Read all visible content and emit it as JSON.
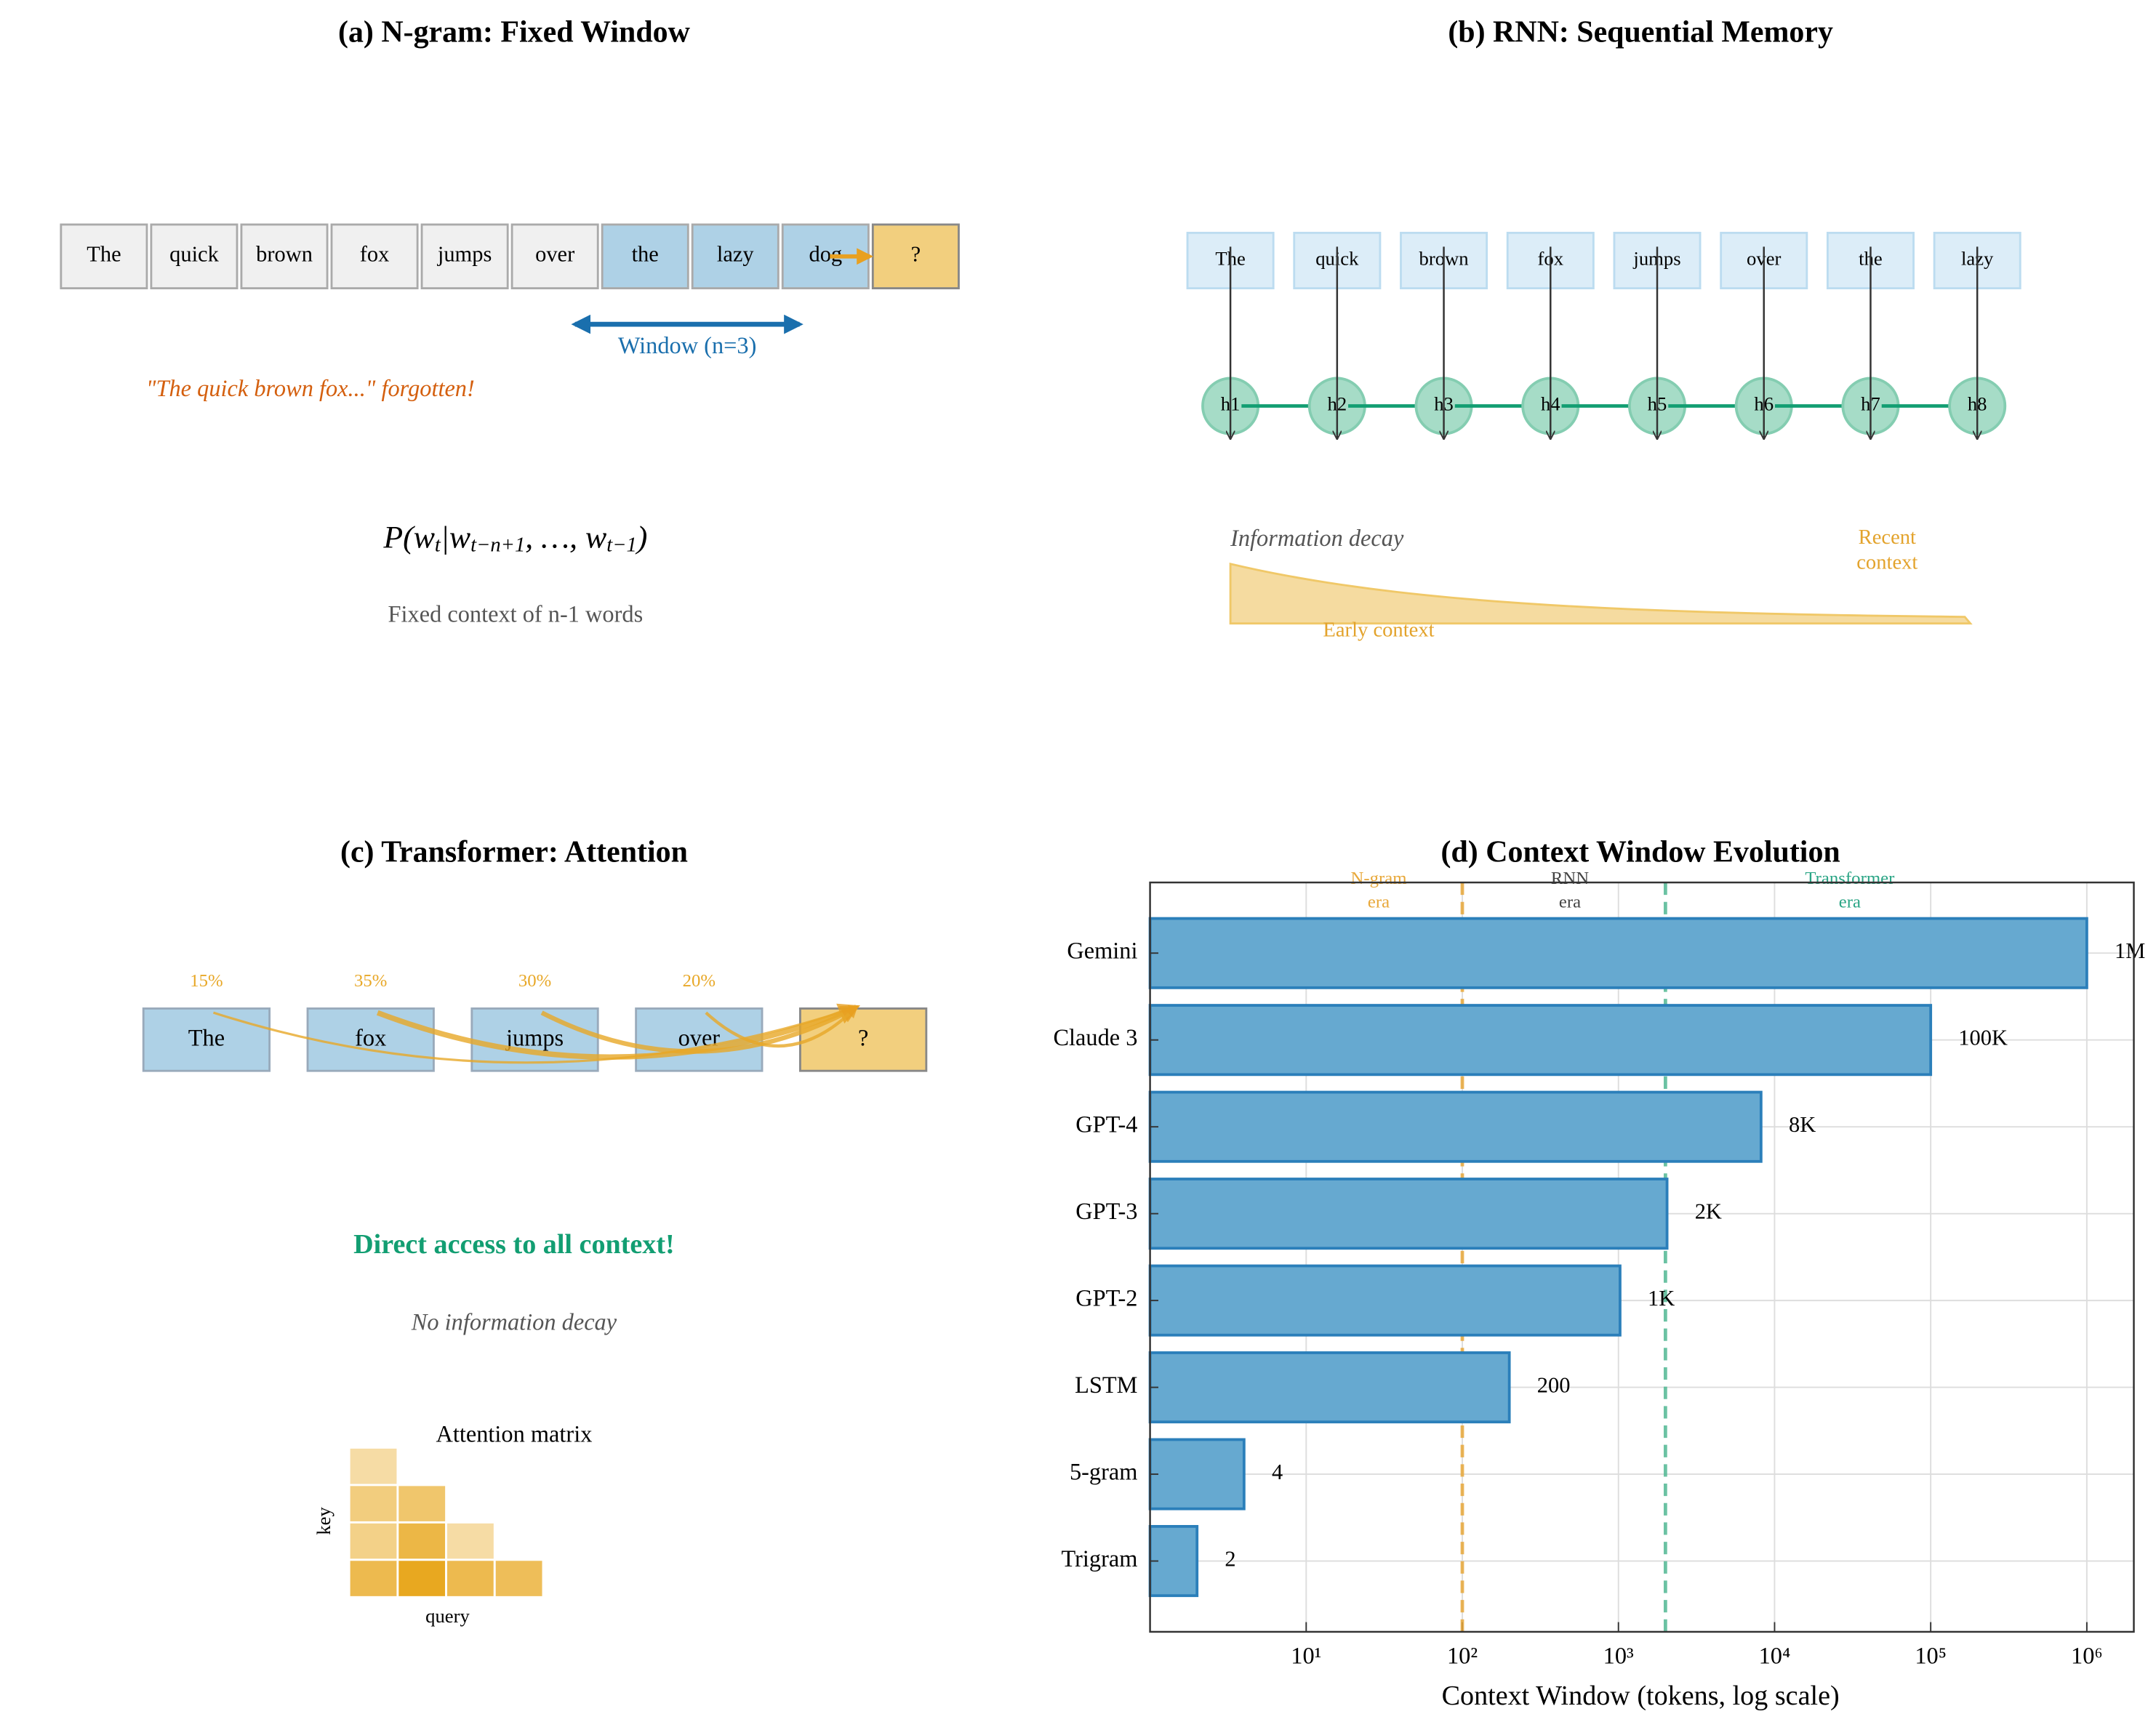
{
  "chart_data": [
    {
      "type": "ngram",
      "title": "(a) N-gram: Fixed Window",
      "tokens": [
        "The",
        "quick",
        "brown",
        "fox",
        "jumps",
        "over",
        "the",
        "lazy",
        "dog",
        "?"
      ],
      "window_label": "Window (n=3)",
      "note": "\"The quick brown fox...\" forgotten!",
      "formula": [
        "P(w",
        "t",
        "|w",
        "t−n+1",
        ", …, w",
        "t−1",
        ")"
      ],
      "caption": "Fixed context of n-1 words",
      "colors": {
        "context": "#f0f0f0",
        "window": "#aed1e6",
        "target": "#f2cf7e",
        "arrow": "#1a6fad",
        "note": "#d45f0e"
      }
    },
    {
      "type": "rnn",
      "title": "(b) RNN: Sequential Memory",
      "tokens": [
        "The",
        "quick",
        "brown",
        "fox",
        "jumps",
        "over",
        "the",
        "lazy"
      ],
      "states": [
        "h1",
        "h2",
        "h3",
        "h4",
        "h5",
        "h6",
        "h7",
        "h8"
      ],
      "decay_label": "Information decay",
      "recent_label": [
        "Recent",
        "context"
      ],
      "early_label": "Early context",
      "colors": {
        "token": "#dcedf8",
        "state": "#a6dcc7",
        "link": "#129e72",
        "decay": "#f5dba0",
        "label": "#e3a32c"
      }
    },
    {
      "type": "attention",
      "title": "(c) Transformer: Attention",
      "tokens": [
        "The",
        "fox",
        "jumps",
        "over",
        "?"
      ],
      "values": [
        15,
        35,
        30,
        20
      ],
      "value_labels": [
        "15%",
        "35%",
        "30%",
        "20%"
      ],
      "headline": "Direct access to all context!",
      "subline": "No information decay",
      "matrix_title": "Attention matrix",
      "matrix_xlabel": "query",
      "matrix_ylabel": "key",
      "matrix": [
        [
          0.3
        ],
        [
          0.5,
          0.6
        ],
        [
          0.45,
          0.8,
          0.3
        ],
        [
          0.75,
          1,
          0.75,
          0.7
        ]
      ],
      "colors": {
        "token": "#aed1e6",
        "target": "#f2cf7e",
        "arc": "#e8a828",
        "headline": "#129e72"
      }
    },
    {
      "type": "bar",
      "title": "(d) Context Window Evolution",
      "categories": [
        "Gemini",
        "Claude 3",
        "GPT-4",
        "GPT-3",
        "GPT-2",
        "LSTM",
        "5-gram",
        "Trigram"
      ],
      "values": [
        1000000,
        100000,
        8192,
        2048,
        1024,
        200,
        4,
        2
      ],
      "value_labels": [
        "1M",
        "100K",
        "8K",
        "2K",
        "1K",
        "200",
        "4",
        "2"
      ],
      "color": "#66a9d0",
      "edge_color": "#2b7fba",
      "xlabel": "Context Window (tokens, log scale)",
      "xscale": "log",
      "xlim": [
        1,
        2000000
      ],
      "xticks": [
        {
          "value": 10,
          "label": "10¹"
        },
        {
          "value": 100,
          "label": "10²"
        },
        {
          "value": 1000,
          "label": "10³"
        },
        {
          "value": 10000,
          "label": "10⁴"
        },
        {
          "value": 100000,
          "label": "10⁵"
        },
        {
          "value": 1000000,
          "label": "10⁶"
        }
      ],
      "grid": true,
      "vlines": [
        {
          "value": 100,
          "color": "#e8a83a"
        },
        {
          "value": 2000,
          "color": "#52b894"
        }
      ],
      "eras": [
        {
          "label": [
            "N-gram",
            "era"
          ],
          "color": "#e8a83a"
        },
        {
          "label": [
            "RNN",
            "era"
          ],
          "color": "#444444"
        },
        {
          "label": [
            "Transformer",
            "era"
          ],
          "color": "#2aa585"
        }
      ]
    }
  ]
}
